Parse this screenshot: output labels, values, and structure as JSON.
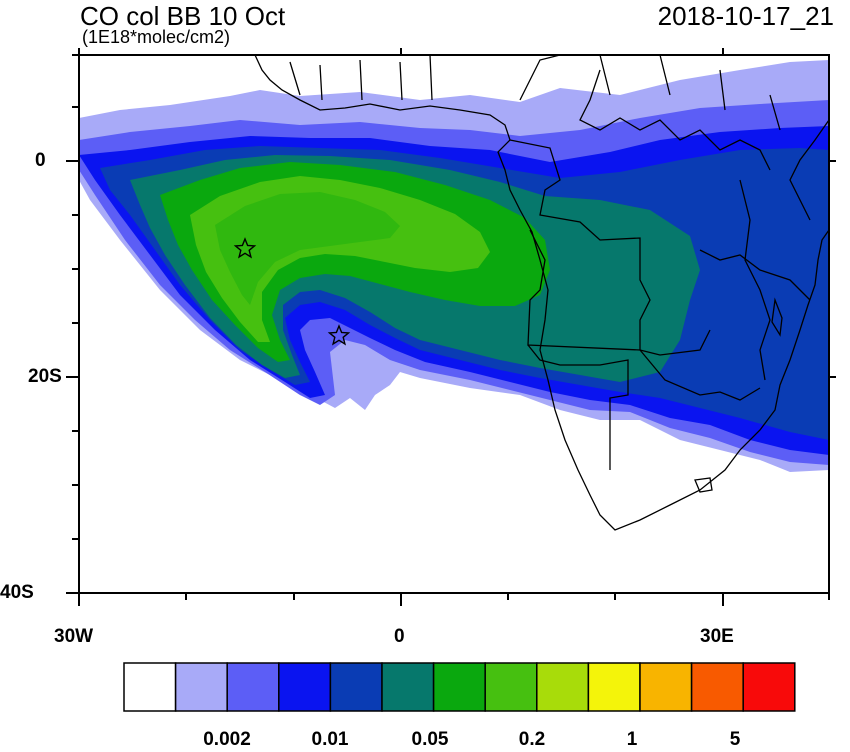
{
  "header": {
    "title": "CO col BB 10 Oct",
    "units": "(1E18*molec/cm2)",
    "datetime": "2018-10-17_21"
  },
  "axes": {
    "lat_labels": [
      "0",
      "20S",
      "40S"
    ],
    "lon_labels": [
      "30W",
      "0",
      "30E"
    ]
  },
  "colorbar": {
    "colors": [
      "#ffffff",
      "#a8aaf8",
      "#5c5ef6",
      "#0a14f0",
      "#0a3cb4",
      "#06786c",
      "#0aa80e",
      "#46c010",
      "#a8dc0a",
      "#f4f40a",
      "#f8b400",
      "#f85a00",
      "#f80a0a"
    ],
    "labels": [
      "0.002",
      "0.01",
      "0.05",
      "0.2",
      "1",
      "5"
    ]
  },
  "markers": [
    {
      "name": "star-marker",
      "lon": -14.5,
      "lat": -8
    },
    {
      "name": "star-marker",
      "lon": -5.7,
      "lat": -16
    }
  ],
  "map_extent": {
    "lon": [
      -30,
      40
    ],
    "lat": [
      -40,
      10
    ]
  }
}
